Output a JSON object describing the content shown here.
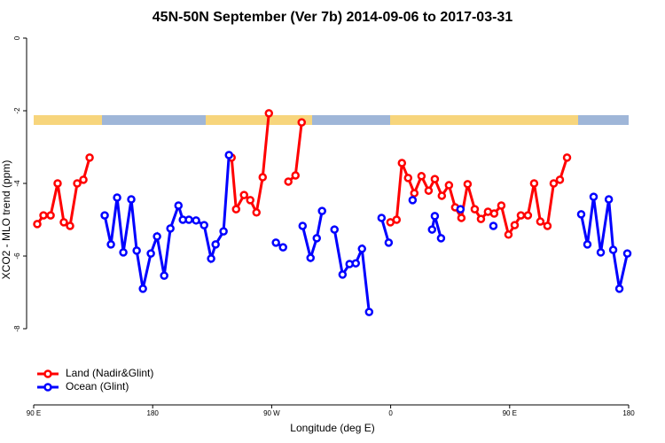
{
  "chart_data": {
    "type": "line",
    "title": "45N-50N September (Ver 7b)   2014-09-06 to 2017-03-31",
    "x_label": "Longitude (deg E)",
    "y_label": "XCO2 - MLO trend (ppm)",
    "xlim": [
      90,
      540
    ],
    "xticks": [
      {
        "value": 90,
        "label": "90 E"
      },
      180,
      {
        "value": 270,
        "label": "90 W"
      },
      {
        "value": 360,
        "label": "0"
      },
      {
        "value": 450,
        "label": "90 E"
      },
      {
        "value": 540,
        "label": "180"
      }
    ],
    "ylim": [
      -10,
      0
    ],
    "yticks": [
      0,
      -2,
      -4,
      -6,
      -8
    ],
    "legend": "bottom-left",
    "series": [
      {
        "name": "Land (Nadir&Glint)",
        "color": "#ff0000",
        "x": [
          92.7,
          97.4,
          102.8,
          108.1,
          112.8,
          117.5,
          122.9,
          127.6,
          132.3,
          null,
          239.7,
          243.1,
          249.1,
          253.8,
          258.5,
          263.2,
          267.9,
          null,
          282.6,
          288,
          292.7,
          null,
          359.8,
          364.5,
          368.5,
          373.2,
          377.9,
          383.3,
          388.7,
          393.4,
          398.7,
          404.1,
          408.8,
          413.5,
          418.2,
          423.6,
          428.3,
          433.6,
          438.3,
          443.7,
          449.1,
          453.8,
          458.5,
          463.8,
          468.5,
          473.2,
          478.6,
          483.3,
          488,
          493.4
        ],
        "values": [
          -5.12,
          -4.88,
          -4.88,
          -4.0,
          -5.07,
          -5.17,
          -4.0,
          -3.9,
          -3.29,
          null,
          -3.29,
          -4.71,
          -4.32,
          -4.46,
          -4.8,
          -3.83,
          -2.07,
          null,
          -3.95,
          -3.78,
          -2.32,
          null,
          -5.07,
          -5.0,
          -3.44,
          -3.85,
          -4.27,
          -3.8,
          -4.2,
          -3.88,
          -4.34,
          -4.05,
          -4.66,
          -4.95,
          -4.02,
          -4.71,
          -4.98,
          -4.78,
          -4.83,
          -4.61,
          -5.41,
          -5.15,
          -4.88,
          -4.88,
          -4.0,
          -5.05,
          -5.17,
          -4.0,
          -3.9,
          -3.29
        ]
      },
      {
        "name": "Ocean (Glint)",
        "color": "#0000ff",
        "x": [
          143.7,
          148.4,
          153.1,
          157.8,
          163.8,
          167.9,
          172.6,
          178.6,
          183.3,
          188.7,
          193.4,
          199.5,
          202.8,
          207.4,
          212.8,
          218.9,
          224.2,
          227.6,
          233.6,
          237.7,
          null,
          273.2,
          278.6,
          null,
          293.4,
          299.4,
          304.1,
          308.1,
          null,
          317.5,
          323.6,
          328.9,
          333.6,
          338.3,
          343.7,
          null,
          353.1,
          358.5,
          null,
          376.6,
          null,
          391.3,
          393.4,
          398.1,
          null,
          412.8,
          null,
          437.7,
          null,
          504.1,
          508.8,
          513.5,
          518.9,
          525,
          528.3,
          533,
          539
        ],
        "values": [
          -4.88,
          -5.68,
          -4.39,
          -5.9,
          -4.44,
          -5.85,
          -6.9,
          -5.93,
          -5.46,
          -6.54,
          -5.24,
          -4.61,
          -5.0,
          -5.0,
          -5.02,
          -5.15,
          -6.07,
          -5.68,
          -5.32,
          -3.22,
          null,
          -5.63,
          -5.76,
          null,
          -5.17,
          -6.05,
          -5.51,
          -4.76,
          null,
          -5.27,
          -6.51,
          -6.22,
          -6.2,
          -5.8,
          -7.54,
          null,
          -4.95,
          -5.63,
          null,
          -4.46,
          null,
          -5.27,
          -4.9,
          -5.51,
          null,
          -4.71,
          null,
          -5.17,
          null,
          -4.85,
          -5.68,
          -4.37,
          -5.9,
          -4.44,
          -5.83,
          -6.9,
          -5.93
        ]
      }
    ]
  }
}
